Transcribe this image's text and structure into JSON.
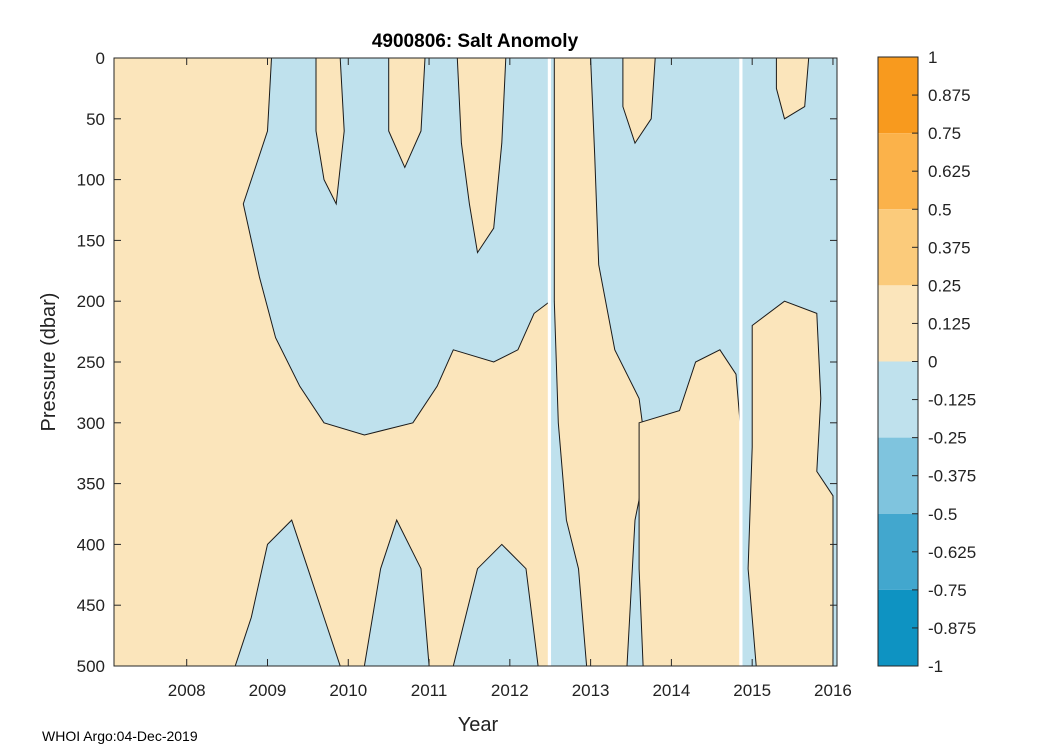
{
  "chart_data": {
    "type": "heatmap",
    "subtype": "filled-contour",
    "title": "4900806: Salt Anomoly",
    "xlabel": "Year",
    "ylabel": "Pressure (dbar)",
    "xlim": [
      2007.1,
      2016.05
    ],
    "ylim": [
      0,
      500
    ],
    "y_reversed": true,
    "x_ticks": [
      2008,
      2009,
      2010,
      2011,
      2012,
      2013,
      2014,
      2015,
      2016
    ],
    "x_tick_labels": [
      "2008",
      "2009",
      "2010",
      "2011",
      "2012",
      "2013",
      "2014",
      "2015",
      "2016"
    ],
    "y_ticks": [
      0,
      50,
      100,
      150,
      200,
      250,
      300,
      350,
      400,
      450,
      500
    ],
    "y_tick_labels": [
      "0",
      "50",
      "100",
      "150",
      "200",
      "250",
      "300",
      "350",
      "400",
      "450",
      "500"
    ],
    "colorbar": {
      "range": [
        -1,
        1
      ],
      "tick_values": [
        1,
        0.875,
        0.75,
        0.625,
        0.5,
        0.375,
        0.25,
        0.125,
        0,
        -0.125,
        -0.25,
        -0.375,
        -0.5,
        -0.625,
        -0.75,
        -0.875,
        -1
      ],
      "tick_labels": [
        "1",
        "0.875",
        "0.75",
        "0.625",
        "0.5",
        "0.375",
        "0.25",
        "0.125",
        "0",
        "-0.125",
        "-0.25",
        "-0.375",
        "-0.5",
        "-0.625",
        "-0.75",
        "-0.875",
        "-1"
      ],
      "bands": [
        {
          "from": 0.75,
          "to": 1.0,
          "color": "#f89a1e"
        },
        {
          "from": 0.5,
          "to": 0.75,
          "color": "#fbb24a"
        },
        {
          "from": 0.25,
          "to": 0.5,
          "color": "#fbcb7b"
        },
        {
          "from": 0.0,
          "to": 0.25,
          "color": "#fbe5bb"
        },
        {
          "from": -0.25,
          "to": 0.0,
          "color": "#bfe1ed"
        },
        {
          "from": -0.5,
          "to": -0.25,
          "color": "#7fc4de"
        },
        {
          "from": -0.75,
          "to": -0.5,
          "color": "#42a7ce"
        },
        {
          "from": -1.0,
          "to": -0.75,
          "color": "#0e93c2"
        }
      ]
    },
    "regions_note": "Field is dominated by two anomaly bands: 0 to 0.25 (positive, light orange) and -0.25 to 0 (negative, light blue).",
    "positive_regions": [
      {
        "name": "early-2007-2009",
        "polygon": [
          [
            2007.1,
            0
          ],
          [
            2009.05,
            0
          ],
          [
            2009.0,
            60
          ],
          [
            2008.7,
            120
          ],
          [
            2008.9,
            180
          ],
          [
            2009.1,
            230
          ],
          [
            2009.4,
            270
          ],
          [
            2009.7,
            300
          ],
          [
            2010.2,
            310
          ],
          [
            2010.8,
            300
          ],
          [
            2011.1,
            270
          ],
          [
            2011.3,
            240
          ],
          [
            2011.8,
            250
          ],
          [
            2012.1,
            240
          ],
          [
            2012.3,
            210
          ],
          [
            2012.5,
            200
          ],
          [
            2012.5,
            500
          ],
          [
            2012.35,
            500
          ],
          [
            2012.2,
            420
          ],
          [
            2011.9,
            400
          ],
          [
            2011.6,
            420
          ],
          [
            2011.3,
            500
          ],
          [
            2011.0,
            500
          ],
          [
            2010.9,
            420
          ],
          [
            2010.6,
            380
          ],
          [
            2010.4,
            420
          ],
          [
            2010.2,
            500
          ],
          [
            2009.9,
            500
          ],
          [
            2009.7,
            460
          ],
          [
            2009.5,
            420
          ],
          [
            2009.3,
            380
          ],
          [
            2009.0,
            400
          ],
          [
            2008.8,
            460
          ],
          [
            2008.6,
            500
          ],
          [
            2007.1,
            500
          ]
        ]
      },
      {
        "name": "2009-upper",
        "polygon": [
          [
            2009.6,
            0
          ],
          [
            2009.9,
            0
          ],
          [
            2009.95,
            60
          ],
          [
            2009.85,
            120
          ],
          [
            2009.7,
            100
          ],
          [
            2009.6,
            60
          ]
        ]
      },
      {
        "name": "2010-2011-upper",
        "polygon": [
          [
            2010.5,
            0
          ],
          [
            2010.95,
            0
          ],
          [
            2010.9,
            60
          ],
          [
            2010.7,
            90
          ],
          [
            2010.5,
            60
          ]
        ]
      },
      {
        "name": "2011-2012-surface",
        "polygon": [
          [
            2011.35,
            0
          ],
          [
            2011.95,
            0
          ],
          [
            2011.9,
            70
          ],
          [
            2011.8,
            140
          ],
          [
            2011.6,
            160
          ],
          [
            2011.5,
            120
          ],
          [
            2011.4,
            70
          ]
        ]
      },
      {
        "name": "2012-2013",
        "polygon": [
          [
            2012.55,
            0
          ],
          [
            2013.0,
            0
          ],
          [
            2013.05,
            80
          ],
          [
            2013.1,
            170
          ],
          [
            2013.3,
            240
          ],
          [
            2013.6,
            280
          ],
          [
            2013.7,
            330
          ],
          [
            2013.55,
            380
          ],
          [
            2013.45,
            500
          ],
          [
            2012.95,
            500
          ],
          [
            2012.85,
            420
          ],
          [
            2012.7,
            380
          ],
          [
            2012.6,
            300
          ],
          [
            2012.55,
            200
          ]
        ]
      },
      {
        "name": "2013-2014-deep",
        "polygon": [
          [
            2013.6,
            300
          ],
          [
            2014.1,
            290
          ],
          [
            2014.3,
            250
          ],
          [
            2014.6,
            240
          ],
          [
            2014.8,
            260
          ],
          [
            2014.85,
            300
          ],
          [
            2014.85,
            500
          ],
          [
            2013.65,
            500
          ],
          [
            2013.6,
            420
          ]
        ]
      },
      {
        "name": "2013-2014-surface",
        "polygon": [
          [
            2013.4,
            0
          ],
          [
            2013.8,
            0
          ],
          [
            2013.75,
            50
          ],
          [
            2013.55,
            70
          ],
          [
            2013.4,
            40
          ]
        ]
      },
      {
        "name": "2015-upper",
        "polygon": [
          [
            2015.3,
            0
          ],
          [
            2015.7,
            0
          ],
          [
            2015.65,
            40
          ],
          [
            2015.4,
            50
          ],
          [
            2015.3,
            25
          ]
        ]
      },
      {
        "name": "2015-2016-deep",
        "polygon": [
          [
            2015.0,
            220
          ],
          [
            2015.4,
            200
          ],
          [
            2015.8,
            210
          ],
          [
            2015.85,
            280
          ],
          [
            2015.8,
            340
          ],
          [
            2016.0,
            360
          ],
          [
            2016.0,
            500
          ],
          [
            2015.05,
            500
          ],
          [
            2014.95,
            420
          ],
          [
            2015.0,
            320
          ]
        ]
      }
    ],
    "gaps": [
      {
        "x0": 2012.47,
        "x1": 2012.51
      },
      {
        "x0": 2014.84,
        "x1": 2014.88
      }
    ]
  },
  "footer": {
    "text": "WHOI Argo:04-Dec-2019"
  }
}
